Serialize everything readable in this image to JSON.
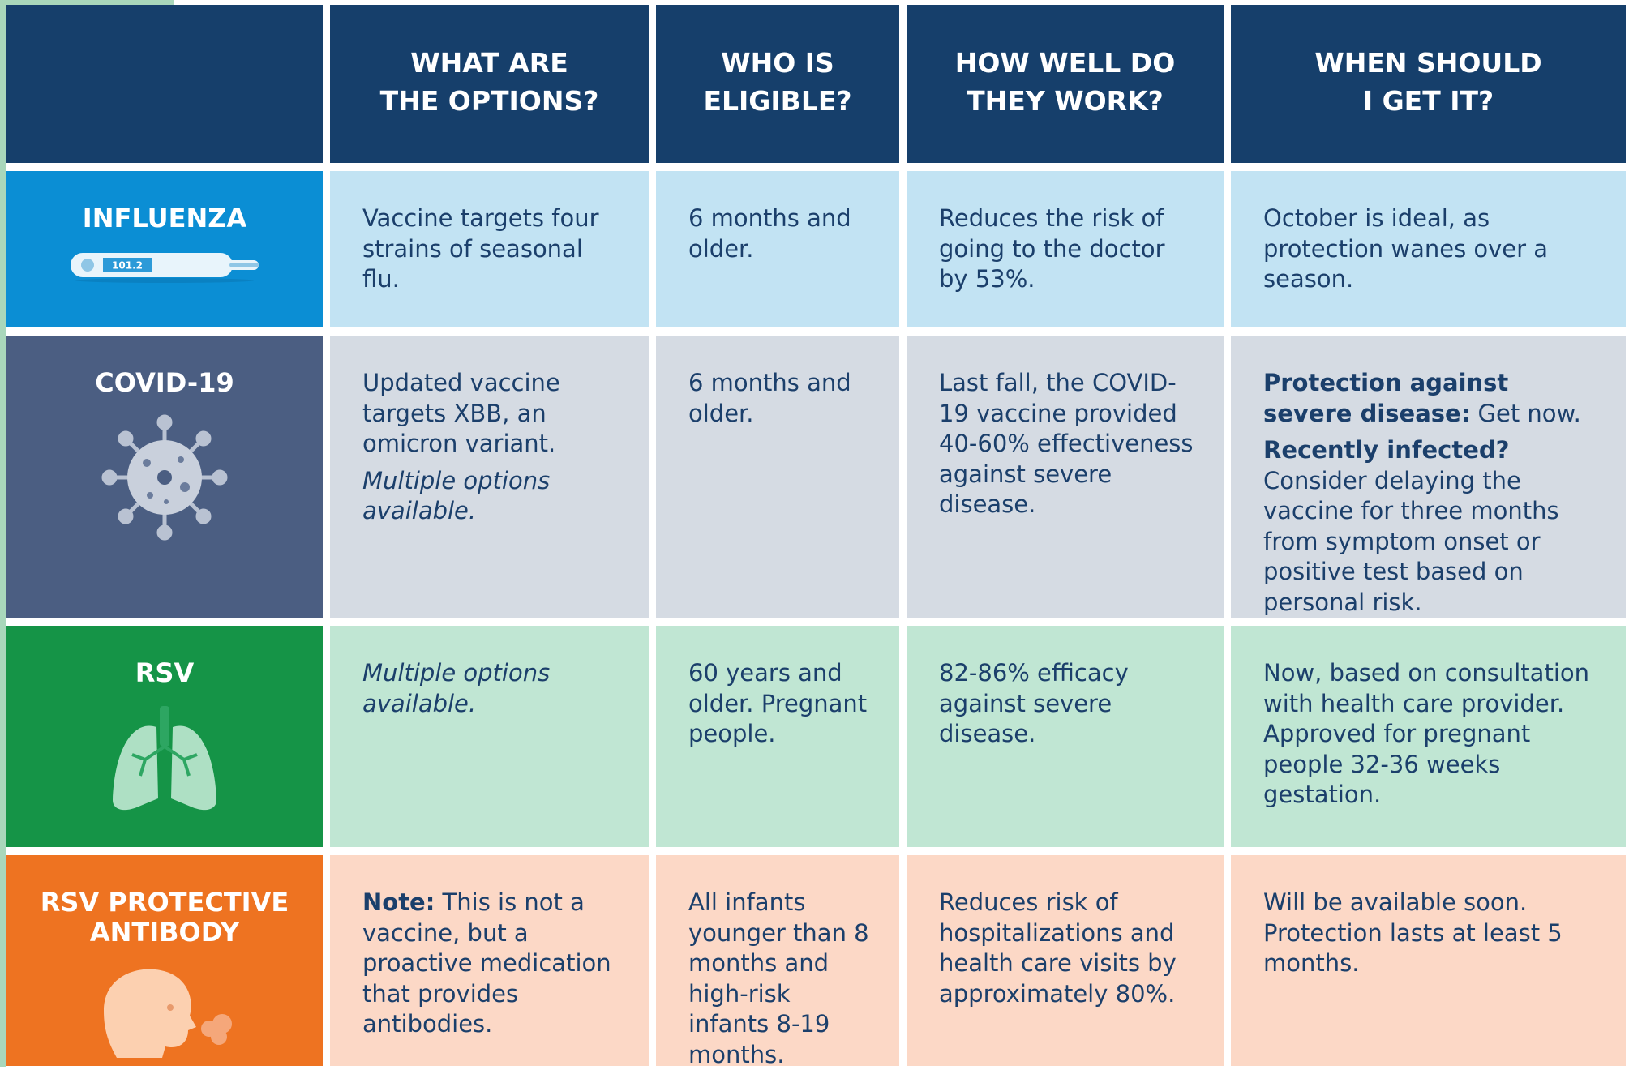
{
  "header": {
    "columns": [
      "WHAT ARE\nTHE OPTIONS?",
      "WHO IS\nELIGIBLE?",
      "HOW WELL DO\nTHEY WORK?",
      "WHEN SHOULD\nI GET IT?"
    ]
  },
  "rows": [
    {
      "label": "INFLUENZA",
      "icon_text": "101.2",
      "label_color": "#0b8ed4",
      "cell_color": "#c2e3f3",
      "cells": [
        [
          {
            "text": "Vaccine targets four strains of seasonal flu."
          }
        ],
        [
          {
            "text": "6 months and older."
          }
        ],
        [
          {
            "text": "Reduces the risk of going to the doctor by 53%."
          }
        ],
        [
          {
            "text": "October is ideal, as protection wanes over a season."
          }
        ]
      ]
    },
    {
      "label": "COVID-19",
      "label_color": "#4b5e82",
      "cell_color": "#d5dbe3",
      "cells": [
        [
          {
            "text": "Updated vaccine targets XBB, an omicron variant."
          },
          {
            "text": "Multiple options available.",
            "italic": true
          }
        ],
        [
          {
            "text": "6 months and older."
          }
        ],
        [
          {
            "text": "Last fall, the COVID-19 vaccine provided 40-60% effectiveness against severe disease."
          }
        ],
        [
          {
            "bold": "Protection against severe disease:",
            "text": " Get now."
          },
          {
            "bold": "Recently infected?",
            "text": " Consider delaying the vaccine for three months from symptom onset or positive test based on personal risk."
          }
        ]
      ]
    },
    {
      "label": "RSV",
      "label_color": "#159447",
      "cell_color": "#c0e6d3",
      "cells": [
        [
          {
            "text": "Multiple options available.",
            "italic": true
          }
        ],
        [
          {
            "text": "60 years and older. Pregnant people."
          }
        ],
        [
          {
            "text": "82-86% efficacy against severe disease."
          }
        ],
        [
          {
            "text": "Now, based on consultation with health care provider. Approved for pregnant people 32-36 weeks gestation."
          }
        ]
      ]
    },
    {
      "label": "RSV PROTECTIVE\nANTIBODY",
      "label_color": "#ee7321",
      "cell_color": "#fcd8c6",
      "cells": [
        [
          {
            "bold": "Note:",
            "text": " This is not a vaccine, but a proactive medication that provides antibodies."
          }
        ],
        [
          {
            "text": "All infants younger than 8 months and high-risk infants 8-19 months."
          }
        ],
        [
          {
            "text": "Reduces risk of hospitalizations and health care visits by approximately 80%."
          }
        ],
        [
          {
            "text": "Will be available soon. Protection lasts at least 5 months."
          }
        ]
      ]
    }
  ]
}
